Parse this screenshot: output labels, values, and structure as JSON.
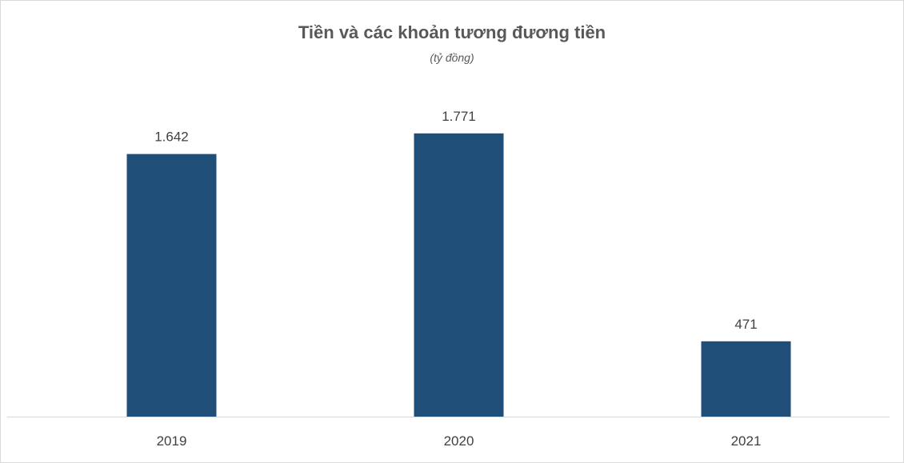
{
  "chart_data": {
    "type": "bar",
    "title": "Tiền và các khoản tương đương tiền",
    "subtitle": "(tỷ đồng)",
    "categories": [
      "2019",
      "2020",
      "2021"
    ],
    "values": [
      1642,
      1771,
      471
    ],
    "value_labels": [
      "1.642",
      "1.771",
      "471"
    ],
    "xlabel": "",
    "ylabel": "",
    "ylim": [
      0,
      2000
    ],
    "grid": false,
    "legend": "none",
    "bar_color": "#1f4e79"
  }
}
